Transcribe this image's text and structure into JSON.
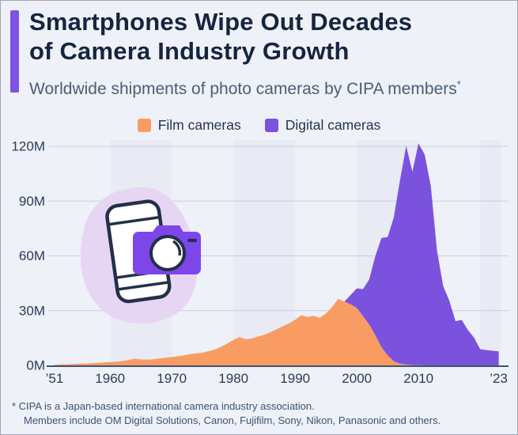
{
  "header": {
    "accent_color": "#7e52e4",
    "title_line1": "Smartphones Wipe Out Decades",
    "title_line2": "of Camera Industry Growth",
    "subtitle": "Worldwide shipments of photo cameras by CIPA members",
    "subtitle_asterisk": "*"
  },
  "legend": {
    "items": [
      {
        "label": "Film cameras",
        "color": "#f99c64"
      },
      {
        "label": "Digital cameras",
        "color": "#7b52dd"
      }
    ]
  },
  "chart_data": {
    "type": "area",
    "stacked": true,
    "unit": "million units",
    "title": "Worldwide shipments of photo cameras by CIPA members",
    "year_min": 1951,
    "year_max": 2023,
    "years": [
      1951,
      1952,
      1953,
      1954,
      1955,
      1956,
      1957,
      1958,
      1959,
      1960,
      1961,
      1962,
      1963,
      1964,
      1965,
      1966,
      1967,
      1968,
      1969,
      1970,
      1971,
      1972,
      1973,
      1974,
      1975,
      1976,
      1977,
      1978,
      1979,
      1980,
      1981,
      1982,
      1983,
      1984,
      1985,
      1986,
      1987,
      1988,
      1989,
      1990,
      1991,
      1992,
      1993,
      1994,
      1995,
      1996,
      1997,
      1998,
      1999,
      2000,
      2001,
      2002,
      2003,
      2004,
      2005,
      2006,
      2007,
      2008,
      2009,
      2010,
      2011,
      2012,
      2013,
      2014,
      2015,
      2016,
      2017,
      2018,
      2019,
      2020,
      2021,
      2022,
      2023
    ],
    "series": [
      {
        "name": "Film cameras",
        "color": "#f99c64",
        "values": [
          0.4,
          0.5,
          0.6,
          0.75,
          0.9,
          1.0,
          1.2,
          1.4,
          1.6,
          1.8,
          2.0,
          2.4,
          2.9,
          3.7,
          3.3,
          3.1,
          3.4,
          3.8,
          4.2,
          4.6,
          5.0,
          5.5,
          6.2,
          6.6,
          7.0,
          7.8,
          8.8,
          10.2,
          12.0,
          14.0,
          15.5,
          14.3,
          14.8,
          15.8,
          16.8,
          18.2,
          19.8,
          21.5,
          23.0,
          25.0,
          27.5,
          26.5,
          27.2,
          26.0,
          28.5,
          32.0,
          36.5,
          35.0,
          33.5,
          31.5,
          27.0,
          22.5,
          16.5,
          10.0,
          5.5,
          2.2,
          1.0,
          0.45,
          0.2,
          0.1,
          0,
          0,
          0,
          0,
          0,
          0,
          0,
          0,
          0,
          0,
          0,
          0,
          0
        ]
      },
      {
        "name": "Digital cameras",
        "color": "#7b52dd",
        "values": [
          0,
          0,
          0,
          0,
          0,
          0,
          0,
          0,
          0,
          0,
          0,
          0,
          0,
          0,
          0,
          0,
          0,
          0,
          0,
          0,
          0,
          0,
          0,
          0,
          0,
          0,
          0,
          0,
          0,
          0,
          0,
          0,
          0,
          0,
          0,
          0,
          0,
          0,
          0,
          0,
          0,
          0,
          0,
          0,
          0,
          0,
          0,
          0,
          5.1,
          10.7,
          14.8,
          24.5,
          43.4,
          59.8,
          64.8,
          79.0,
          100.4,
          119.8,
          105.9,
          121.5,
          115.5,
          98.1,
          62.8,
          43.4,
          35.4,
          24.2,
          24.9,
          19.4,
          15.2,
          8.9,
          8.4,
          8.0,
          7.7
        ]
      }
    ],
    "ylim": [
      0,
      120
    ],
    "yticks": [
      {
        "value": 0,
        "label": "0M"
      },
      {
        "value": 30,
        "label": "30M"
      },
      {
        "value": 60,
        "label": "60M"
      },
      {
        "value": 90,
        "label": "90M"
      },
      {
        "value": 120,
        "label": "120M"
      }
    ],
    "xticks": [
      {
        "year": 1951,
        "label": "’51"
      },
      {
        "year": 1960,
        "label": "1960"
      },
      {
        "year": 1970,
        "label": "1970"
      },
      {
        "year": 1980,
        "label": "1980"
      },
      {
        "year": 1990,
        "label": "1990"
      },
      {
        "year": 2000,
        "label": "2000"
      },
      {
        "year": 2010,
        "label": "2010"
      },
      {
        "year": 2023,
        "label": "’23"
      }
    ],
    "grid": "horizontal",
    "legend_position": "top",
    "band_decades": [
      1960,
      1980,
      2000,
      2020
    ],
    "band_color": "#e4e8f1",
    "gridline_color": "#c9cedb",
    "axis_color": "#42536d",
    "tick_label_color": "#2b3b57"
  },
  "icon": {
    "name": "smartphone-camera-illustration",
    "blob_color": "#e7d6f3",
    "phone_fill": "#ffffff",
    "camera_color": "#7d46e8",
    "outline_color": "#223049"
  },
  "footer": {
    "line1": "* CIPA is a Japan-based international camera industry association.",
    "line2": "Members include OM Digital Solutions, Canon, Fujifilm, Sony, Nikon, Panasonic and others."
  }
}
